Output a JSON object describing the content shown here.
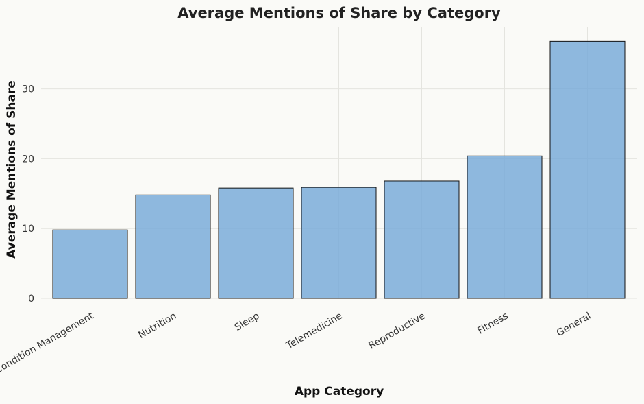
{
  "chart_data": {
    "type": "bar",
    "title": "Average Mentions of Share by Category",
    "xlabel": "App Category",
    "ylabel": "Average Mentions of Share",
    "categories": [
      "Condition Management",
      "Nutrition",
      "Sleep",
      "Telemedicine",
      "Reproductive",
      "Fitness",
      "General"
    ],
    "values": [
      9.8,
      14.8,
      15.8,
      15.9,
      16.8,
      20.4,
      36.8
    ],
    "ylim": [
      0,
      38.8
    ],
    "yticks": [
      0,
      10,
      20,
      30
    ],
    "grid": true,
    "legend": "none",
    "bar_color": "#7aabd9",
    "edge_color": "#111111"
  }
}
